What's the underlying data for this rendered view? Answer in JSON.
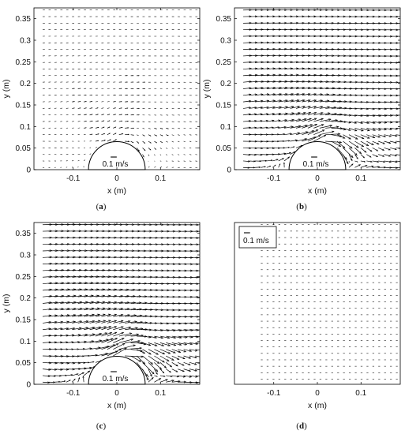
{
  "chart_data": [
    {
      "type": "quiver",
      "panel": "(a)",
      "xlabel": "x (m)",
      "ylabel": "y (m)",
      "xlim": [
        -0.19,
        0.19
      ],
      "ylim": [
        0,
        0.375
      ],
      "x_ticks": [
        -0.1,
        0,
        0.1
      ],
      "x_tick_labels": [
        "-0.1",
        "0",
        "0.1"
      ],
      "y_ticks": [
        0,
        0.05,
        0.1,
        0.15,
        0.2,
        0.25,
        0.3,
        0.35
      ],
      "y_tick_labels": [
        "0",
        "0.05",
        "0.1",
        "0.15",
        "0.2",
        "0.25",
        "0.3",
        "0.35"
      ],
      "obstacle": {
        "shape": "semicircle",
        "center_x": 0,
        "center_y": 0,
        "radius": 0.065
      },
      "scale_label": "0.1 m/s",
      "scale_value": 0.1,
      "free_stream_speed": 0.035,
      "perturbation": 0.75
    },
    {
      "type": "quiver",
      "panel": "(b)",
      "xlabel": "x (m)",
      "ylabel": "y (m)",
      "xlim": [
        -0.19,
        0.19
      ],
      "ylim": [
        0,
        0.375
      ],
      "x_ticks": [
        -0.1,
        0,
        0.1
      ],
      "x_tick_labels": [
        "-0.1",
        "0",
        "0.1"
      ],
      "y_ticks": [
        0,
        0.05,
        0.1,
        0.15,
        0.2,
        0.25,
        0.3,
        0.35
      ],
      "y_tick_labels": [
        "0",
        "0.05",
        "0.1",
        "0.15",
        "0.2",
        "0.25",
        "0.3",
        "0.35"
      ],
      "obstacle": {
        "shape": "semicircle",
        "center_x": 0,
        "center_y": 0,
        "radius": 0.065
      },
      "scale_label": "0.1 m/s",
      "scale_value": 0.1,
      "free_stream_speed": 0.13,
      "perturbation": 0.7
    },
    {
      "type": "quiver",
      "panel": "(c)",
      "xlabel": "x (m)",
      "ylabel": "y (m)",
      "xlim": [
        -0.19,
        0.19
      ],
      "ylim": [
        0,
        0.375
      ],
      "x_ticks": [
        -0.1,
        0,
        0.1
      ],
      "x_tick_labels": [
        "-0.1",
        "0",
        "0.1"
      ],
      "y_ticks": [
        0,
        0.05,
        0.1,
        0.15,
        0.2,
        0.25,
        0.3,
        0.35
      ],
      "y_tick_labels": [
        "0",
        "0.05",
        "0.1",
        "0.15",
        "0.2",
        "0.25",
        "0.3",
        "0.35"
      ],
      "obstacle": {
        "shape": "semicircle",
        "center_x": 0,
        "center_y": 0,
        "radius": 0.065
      },
      "scale_label": "0.1 m/s",
      "scale_value": 0.1,
      "free_stream_speed": 0.145,
      "perturbation": 0.8
    },
    {
      "type": "quiver",
      "panel": "(d)",
      "xlabel": "x (m)",
      "ylabel": "",
      "xlim": [
        -0.19,
        0.19
      ],
      "ylim": [
        0,
        0.375
      ],
      "x_ticks": [
        -0.1,
        0,
        0.1
      ],
      "x_tick_labels": [
        "-0.1",
        "0",
        "0.1"
      ],
      "y_ticks": [],
      "y_tick_labels": [],
      "obstacle": null,
      "scale_label": "0.1 m/s",
      "scale_value": 0.1,
      "free_stream_speed": 0.03,
      "perturbation": 0.0
    }
  ]
}
